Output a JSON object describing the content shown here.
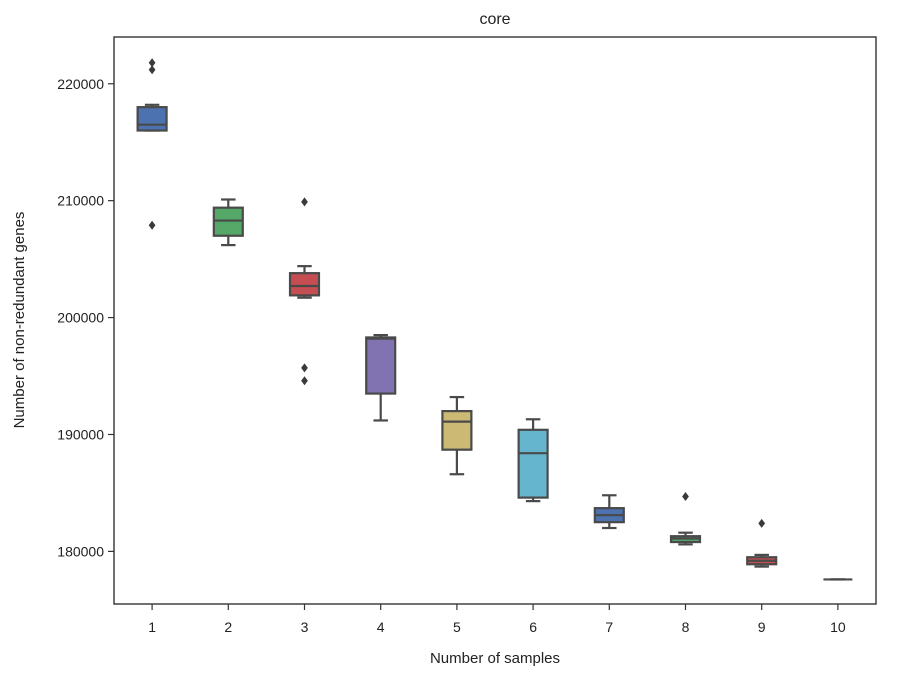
{
  "chart_data": {
    "type": "box",
    "title": "core",
    "xlabel": "Number of samples",
    "ylabel": "Number of non-redundant genes",
    "ylim": [
      175500,
      224000
    ],
    "yticks": [
      180000,
      190000,
      200000,
      210000,
      220000
    ],
    "ytick_labels": [
      "180000",
      "190000",
      "200000",
      "210000",
      "220000"
    ],
    "categories": [
      "1",
      "2",
      "3",
      "4",
      "5",
      "6",
      "7",
      "8",
      "9",
      "10"
    ],
    "grid": false,
    "legend": false,
    "boxes": [
      {
        "category": "1",
        "color": "#4c72b0",
        "whisker_low": 216000,
        "q1": 216000,
        "median": 216500,
        "q3": 218000,
        "whisker_high": 218200,
        "outliers": [
          207900,
          221200,
          221800
        ]
      },
      {
        "category": "2",
        "color": "#55a868",
        "whisker_low": 206200,
        "q1": 207000,
        "median": 208300,
        "q3": 209400,
        "whisker_high": 210100,
        "outliers": []
      },
      {
        "category": "3",
        "color": "#c44e52",
        "whisker_low": 201700,
        "q1": 201900,
        "median": 202700,
        "q3": 203800,
        "whisker_high": 204400,
        "outliers": [
          194600,
          195700,
          209900
        ]
      },
      {
        "category": "4",
        "color": "#8172b2",
        "whisker_low": 191200,
        "q1": 193500,
        "median": 198200,
        "q3": 198300,
        "whisker_high": 198500,
        "outliers": []
      },
      {
        "category": "5",
        "color": "#ccb974",
        "whisker_low": 186600,
        "q1": 188700,
        "median": 191100,
        "q3": 192000,
        "whisker_high": 193200,
        "outliers": []
      },
      {
        "category": "6",
        "color": "#64b5cd",
        "whisker_low": 184300,
        "q1": 184600,
        "median": 188400,
        "q3": 190400,
        "whisker_high": 191300,
        "outliers": []
      },
      {
        "category": "7",
        "color": "#4c72b0",
        "whisker_low": 182000,
        "q1": 182500,
        "median": 183100,
        "q3": 183700,
        "whisker_high": 184800,
        "outliers": []
      },
      {
        "category": "8",
        "color": "#55a868",
        "whisker_low": 180600,
        "q1": 180800,
        "median": 181100,
        "q3": 181300,
        "whisker_high": 181600,
        "outliers": [
          184700
        ]
      },
      {
        "category": "9",
        "color": "#c44e52",
        "whisker_low": 178700,
        "q1": 178900,
        "median": 179200,
        "q3": 179500,
        "whisker_high": 179700,
        "outliers": [
          182400
        ]
      },
      {
        "category": "10",
        "color": "#8172b2",
        "whisker_low": 177600,
        "q1": 177600,
        "median": 177600,
        "q3": 177600,
        "whisker_high": 177600,
        "outliers": []
      }
    ]
  }
}
